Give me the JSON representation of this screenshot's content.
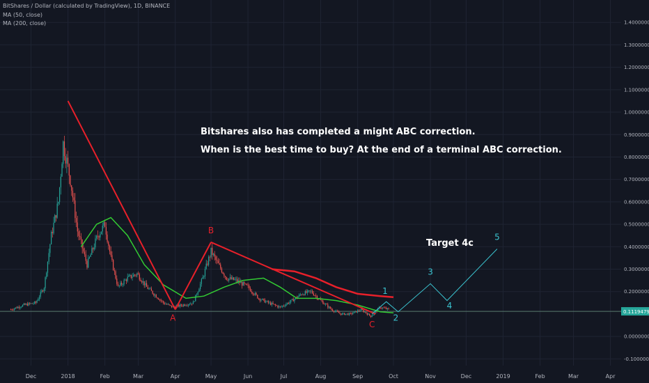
{
  "header": {
    "title": "BitShares / Dollar (calculated by TradingView), 1D, BINANCE",
    "indicators": [
      "MA (50, close)",
      "MA (200, close)"
    ]
  },
  "annotations": {
    "line1": "Bitshares also has completed a might ABC correction.",
    "line2": "When is the best time to buy? At the end of a terminal ABC correction.",
    "target": "Target 4c"
  },
  "colors": {
    "background": "#131722",
    "grid": "#1f2433",
    "candle_up": "#26a69a",
    "candle_down": "#ef5350",
    "ma50": "#33cc33",
    "ma200": "#e8202a",
    "abc_line": "#e8202a",
    "wave_line": "#3bc4d0",
    "price_tag": "#26a69a",
    "price_line": "#5a7c70"
  },
  "chart_data": {
    "type": "candlestick",
    "x_range": [
      "2017-11-05",
      "2019-04-10"
    ],
    "y_range": [
      -0.13,
      1.5
    ],
    "yticks": [
      {
        "v": 1.4,
        "label": "1.40000000"
      },
      {
        "v": 1.3,
        "label": "1.30000000"
      },
      {
        "v": 1.2,
        "label": "1.20000000"
      },
      {
        "v": 1.1,
        "label": "1.10000000"
      },
      {
        "v": 1.0,
        "label": "1.00000000"
      },
      {
        "v": 0.9,
        "label": "0.90000000"
      },
      {
        "v": 0.8,
        "label": "0.80000000"
      },
      {
        "v": 0.7,
        "label": "0.70000000"
      },
      {
        "v": 0.6,
        "label": "0.60000000"
      },
      {
        "v": 0.5,
        "label": "0.50000000"
      },
      {
        "v": 0.4,
        "label": "0.40000000"
      },
      {
        "v": 0.3,
        "label": "0.30000000"
      },
      {
        "v": 0.2,
        "label": "0.20000000"
      },
      {
        "v": 0.0,
        "label": "0.00000000"
      },
      {
        "v": -0.1,
        "label": "-0.10000000"
      }
    ],
    "xticks": [
      {
        "d": "2017-12-01",
        "label": "Dec"
      },
      {
        "d": "2018-01-01",
        "label": "2018"
      },
      {
        "d": "2018-02-01",
        "label": "Feb"
      },
      {
        "d": "2018-03-01",
        "label": "Mar"
      },
      {
        "d": "2018-04-01",
        "label": "Apr"
      },
      {
        "d": "2018-05-01",
        "label": "May"
      },
      {
        "d": "2018-06-01",
        "label": "Jun"
      },
      {
        "d": "2018-07-01",
        "label": "Jul"
      },
      {
        "d": "2018-08-01",
        "label": "Aug"
      },
      {
        "d": "2018-09-01",
        "label": "Sep"
      },
      {
        "d": "2018-10-01",
        "label": "Oct"
      },
      {
        "d": "2018-11-01",
        "label": "Nov"
      },
      {
        "d": "2018-12-01",
        "label": "Dec"
      },
      {
        "d": "2019-01-01",
        "label": "2019"
      },
      {
        "d": "2019-02-01",
        "label": "Feb"
      },
      {
        "d": "2019-03-01",
        "label": "Mar"
      },
      {
        "d": "2019-04-01",
        "label": "Apr"
      }
    ],
    "current_price": {
      "value": 0.11194793,
      "label": "0.11194793"
    },
    "close_path": [
      [
        "2017-11-14",
        0.12
      ],
      [
        "2017-11-25",
        0.14
      ],
      [
        "2017-12-05",
        0.15
      ],
      [
        "2017-12-12",
        0.22
      ],
      [
        "2017-12-18",
        0.45
      ],
      [
        "2017-12-24",
        0.6
      ],
      [
        "2017-12-28",
        0.86
      ],
      [
        "2018-01-03",
        0.7
      ],
      [
        "2018-01-09",
        0.47
      ],
      [
        "2018-01-17",
        0.32
      ],
      [
        "2018-01-26",
        0.45
      ],
      [
        "2018-02-01",
        0.5
      ],
      [
        "2018-02-06",
        0.35
      ],
      [
        "2018-02-12",
        0.22
      ],
      [
        "2018-02-20",
        0.26
      ],
      [
        "2018-02-28",
        0.28
      ],
      [
        "2018-03-08",
        0.22
      ],
      [
        "2018-03-16",
        0.18
      ],
      [
        "2018-03-22",
        0.15
      ],
      [
        "2018-03-30",
        0.13
      ],
      [
        "2018-04-07",
        0.14
      ],
      [
        "2018-04-16",
        0.15
      ],
      [
        "2018-04-24",
        0.26
      ],
      [
        "2018-05-01",
        0.38
      ],
      [
        "2018-05-06",
        0.33
      ],
      [
        "2018-05-14",
        0.26
      ],
      [
        "2018-05-22",
        0.25
      ],
      [
        "2018-06-01",
        0.22
      ],
      [
        "2018-06-10",
        0.17
      ],
      [
        "2018-06-18",
        0.15
      ],
      [
        "2018-06-28",
        0.13
      ],
      [
        "2018-07-08",
        0.16
      ],
      [
        "2018-07-16",
        0.19
      ],
      [
        "2018-07-24",
        0.2
      ],
      [
        "2018-08-01",
        0.16
      ],
      [
        "2018-08-10",
        0.12
      ],
      [
        "2018-08-18",
        0.1
      ],
      [
        "2018-08-26",
        0.1
      ],
      [
        "2018-09-04",
        0.12
      ],
      [
        "2018-09-12",
        0.09
      ],
      [
        "2018-09-20",
        0.13
      ],
      [
        "2018-09-27",
        0.12
      ]
    ],
    "ma50": [
      [
        "2018-01-12",
        0.4
      ],
      [
        "2018-01-25",
        0.5
      ],
      [
        "2018-02-06",
        0.53
      ],
      [
        "2018-02-20",
        0.45
      ],
      [
        "2018-03-06",
        0.32
      ],
      [
        "2018-03-22",
        0.23
      ],
      [
        "2018-04-10",
        0.17
      ],
      [
        "2018-04-25",
        0.18
      ],
      [
        "2018-05-12",
        0.22
      ],
      [
        "2018-05-28",
        0.25
      ],
      [
        "2018-06-14",
        0.26
      ],
      [
        "2018-06-28",
        0.22
      ],
      [
        "2018-07-12",
        0.17
      ],
      [
        "2018-07-28",
        0.17
      ],
      [
        "2018-08-14",
        0.16
      ],
      [
        "2018-09-01",
        0.14
      ],
      [
        "2018-09-20",
        0.11
      ],
      [
        "2018-10-01",
        0.105
      ]
    ],
    "ma200": [
      [
        "2018-06-21",
        0.3
      ],
      [
        "2018-07-10",
        0.29
      ],
      [
        "2018-07-28",
        0.26
      ],
      [
        "2018-08-14",
        0.22
      ],
      [
        "2018-09-01",
        0.19
      ],
      [
        "2018-09-20",
        0.18
      ],
      [
        "2018-10-01",
        0.175
      ]
    ],
    "abc_lines": [
      [
        [
          "2018-01-01",
          1.05
        ],
        [
          "2018-04-01",
          0.12
        ]
      ],
      [
        [
          "2018-04-01",
          0.12
        ],
        [
          "2018-05-01",
          0.42
        ]
      ],
      [
        [
          "2018-05-01",
          0.42
        ],
        [
          "2018-09-16",
          0.1
        ]
      ]
    ],
    "abc_labels": [
      {
        "text": "A",
        "d": "2018-03-30",
        "v": 0.07
      },
      {
        "text": "B",
        "d": "2018-05-01",
        "v": 0.46
      },
      {
        "text": "C",
        "d": "2018-09-13",
        "v": 0.04
      }
    ],
    "wave_path": [
      [
        "2018-09-13",
        0.1
      ],
      [
        "2018-09-25",
        0.155
      ],
      [
        "2018-10-05",
        0.11
      ],
      [
        "2018-11-01",
        0.235
      ],
      [
        "2018-11-15",
        0.16
      ],
      [
        "2018-12-27",
        0.39
      ]
    ],
    "wave_labels": [
      {
        "text": "1",
        "d": "2018-09-24",
        "v": 0.19
      },
      {
        "text": "2",
        "d": "2018-10-03",
        "v": 0.07
      },
      {
        "text": "3",
        "d": "2018-11-01",
        "v": 0.275
      },
      {
        "text": "4",
        "d": "2018-11-17",
        "v": 0.125
      },
      {
        "text": "5",
        "d": "2018-12-27",
        "v": 0.43
      }
    ]
  }
}
